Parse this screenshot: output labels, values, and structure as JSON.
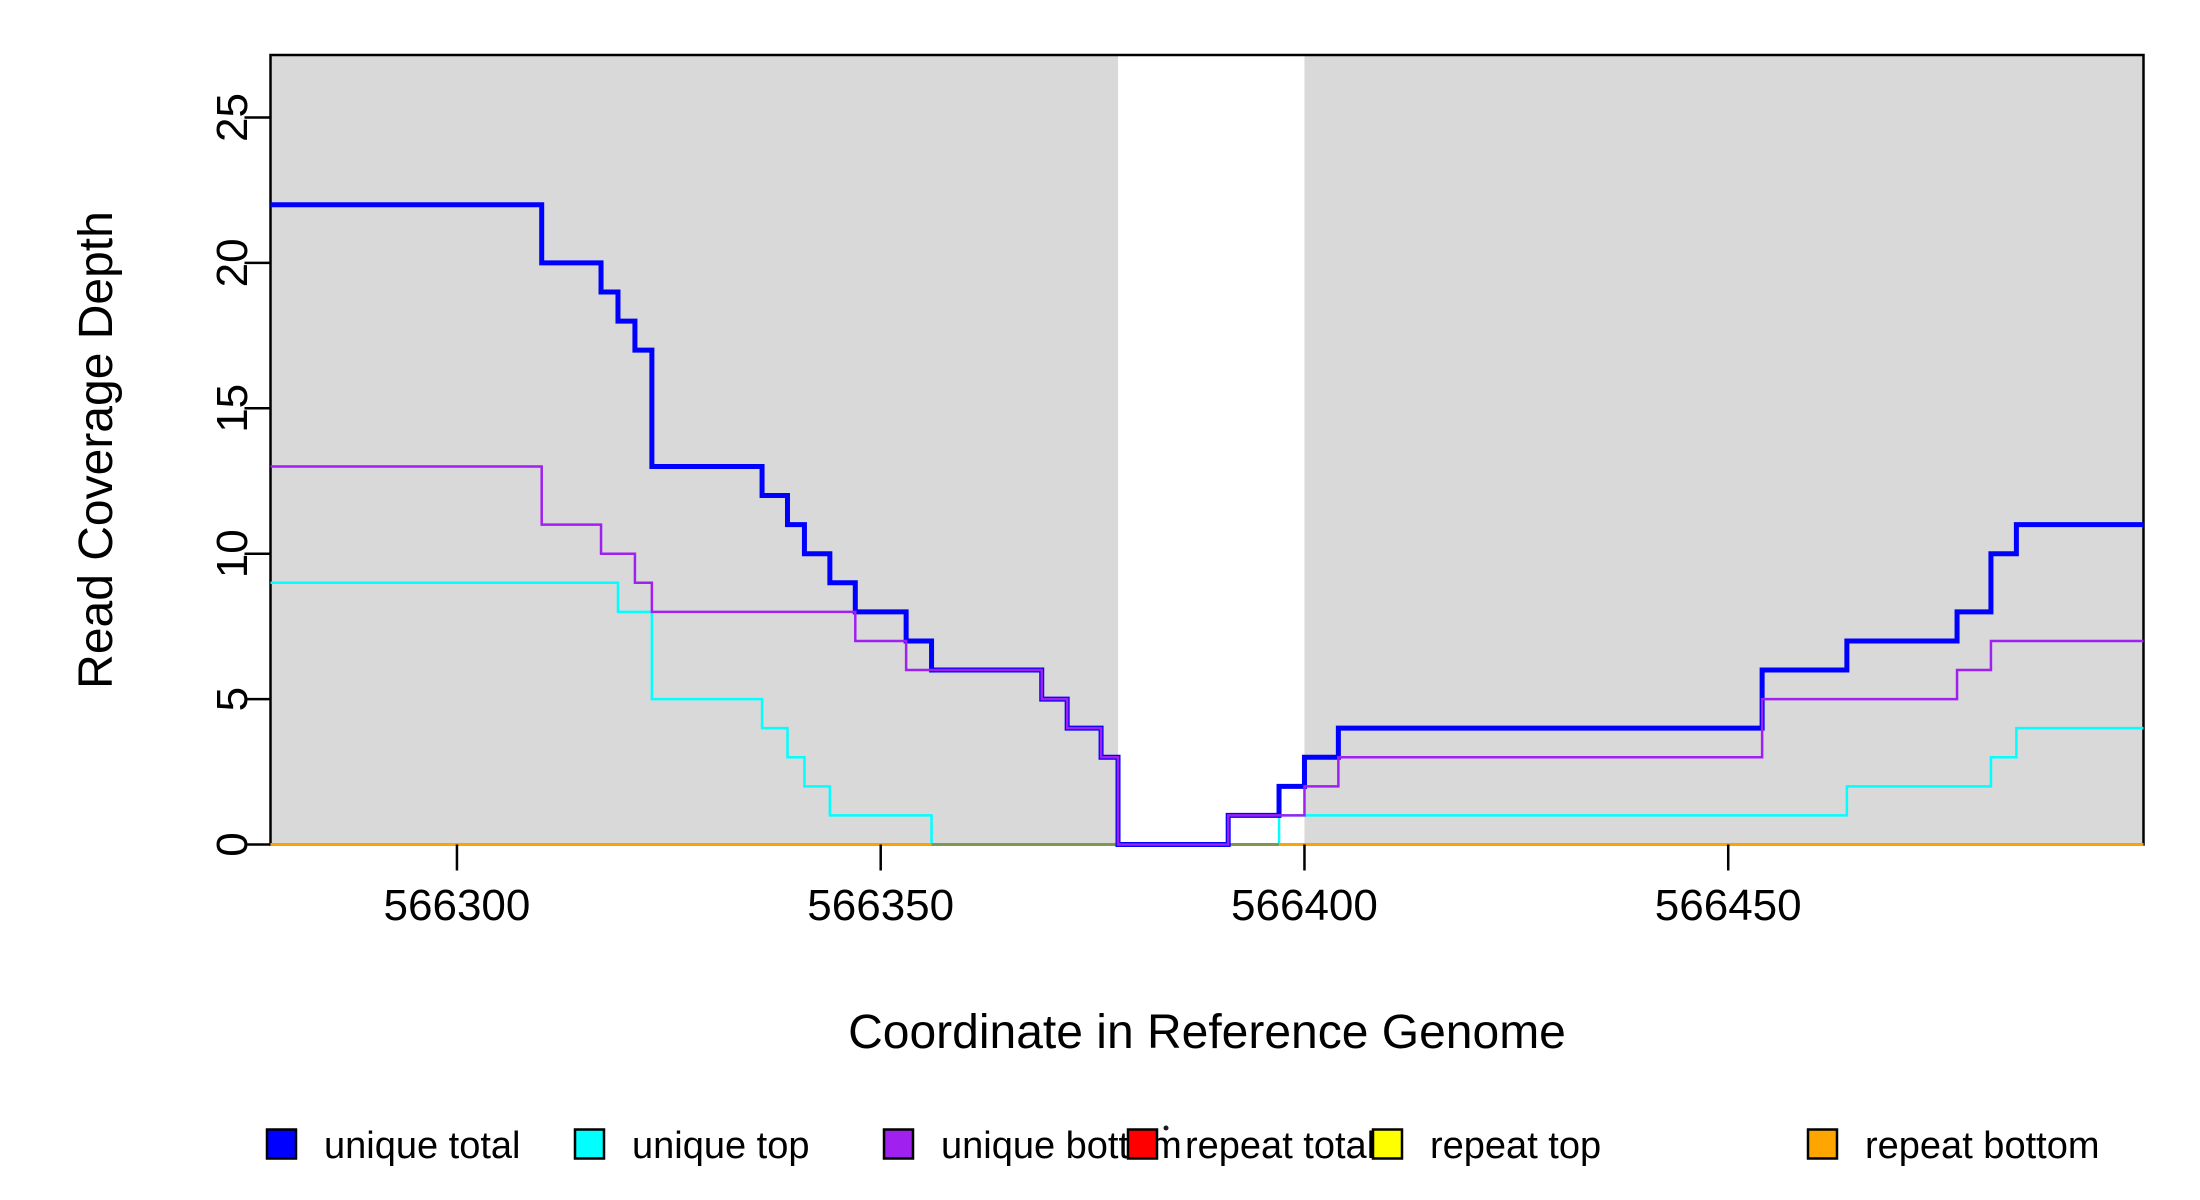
{
  "figure": {
    "background": "#ffffff"
  },
  "chart_data": {
    "type": "line",
    "subtype": "step",
    "title": "",
    "xlabel": "Coordinate in Reference Genome",
    "ylabel": "Read Coverage Depth",
    "xlim": [
      566278,
      566499
    ],
    "ylim": [
      0,
      27.15
    ],
    "x_ticks": [
      566300,
      566350,
      566400,
      566450
    ],
    "y_ticks": [
      0,
      5,
      10,
      15,
      20,
      25
    ],
    "grid": false,
    "legend_position": "bottom",
    "plot_background": "#ffffff",
    "band_color": "#d9d9d9",
    "background_bands": [
      {
        "x0": 566278,
        "x1": 566378
      },
      {
        "x0": 566400,
        "x1": 566499
      }
    ],
    "series": [
      {
        "name": "unique total",
        "color": "#0000ff",
        "line_width": 5,
        "steps": [
          [
            566278,
            22
          ],
          [
            566310,
            20
          ],
          [
            566317,
            19
          ],
          [
            566319,
            18
          ],
          [
            566321,
            17
          ],
          [
            566323,
            13
          ],
          [
            566336,
            12
          ],
          [
            566339,
            11
          ],
          [
            566341,
            10
          ],
          [
            566344,
            9
          ],
          [
            566347,
            8
          ],
          [
            566353,
            7
          ],
          [
            566356,
            6
          ],
          [
            566369,
            5
          ],
          [
            566372,
            4
          ],
          [
            566376,
            3
          ],
          [
            566378,
            0
          ],
          [
            566391,
            1
          ],
          [
            566397,
            2
          ],
          [
            566400,
            3
          ],
          [
            566404,
            4
          ],
          [
            566454,
            6
          ],
          [
            566464,
            7
          ],
          [
            566477,
            8
          ],
          [
            566481,
            10
          ],
          [
            566484,
            11
          ],
          [
            566499,
            11
          ]
        ]
      },
      {
        "name": "unique top",
        "color": "#00ffff",
        "line_width": 2.5,
        "steps": [
          [
            566278,
            9
          ],
          [
            566319,
            8
          ],
          [
            566323,
            5
          ],
          [
            566336,
            4
          ],
          [
            566339,
            3
          ],
          [
            566341,
            2
          ],
          [
            566344,
            1
          ],
          [
            566356,
            0
          ],
          [
            566397,
            1
          ],
          [
            566464,
            2
          ],
          [
            566481,
            3
          ],
          [
            566484,
            4
          ],
          [
            566499,
            4
          ]
        ]
      },
      {
        "name": "unique bottom",
        "color": "#a020f0",
        "line_width": 2.5,
        "steps": [
          [
            566278,
            13
          ],
          [
            566310,
            11
          ],
          [
            566317,
            10
          ],
          [
            566321,
            9
          ],
          [
            566323,
            8
          ],
          [
            566347,
            7
          ],
          [
            566353,
            6
          ],
          [
            566369,
            5
          ],
          [
            566372,
            4
          ],
          [
            566376,
            3
          ],
          [
            566378,
            0
          ],
          [
            566391,
            1
          ],
          [
            566400,
            2
          ],
          [
            566404,
            3
          ],
          [
            566454,
            5
          ],
          [
            566477,
            6
          ],
          [
            566481,
            7
          ],
          [
            566499,
            7
          ]
        ]
      },
      {
        "name": "repeat total",
        "color": "#ff0000",
        "line_width": 2.5,
        "steps": [
          [
            566278,
            0
          ],
          [
            566499,
            0
          ]
        ]
      },
      {
        "name": "repeat top",
        "color": "#ffff00",
        "line_width": 2.5,
        "steps": [
          [
            566278,
            0
          ],
          [
            566499,
            0
          ]
        ]
      },
      {
        "name": "repeat bottom",
        "color": "#ffa500",
        "line_width": 2.5,
        "steps": [
          [
            566278,
            0
          ],
          [
            566499,
            0
          ]
        ]
      }
    ],
    "zero_line_blend": {
      "x0": 566356,
      "x1": 566397,
      "color": "#7d9a4c"
    }
  }
}
